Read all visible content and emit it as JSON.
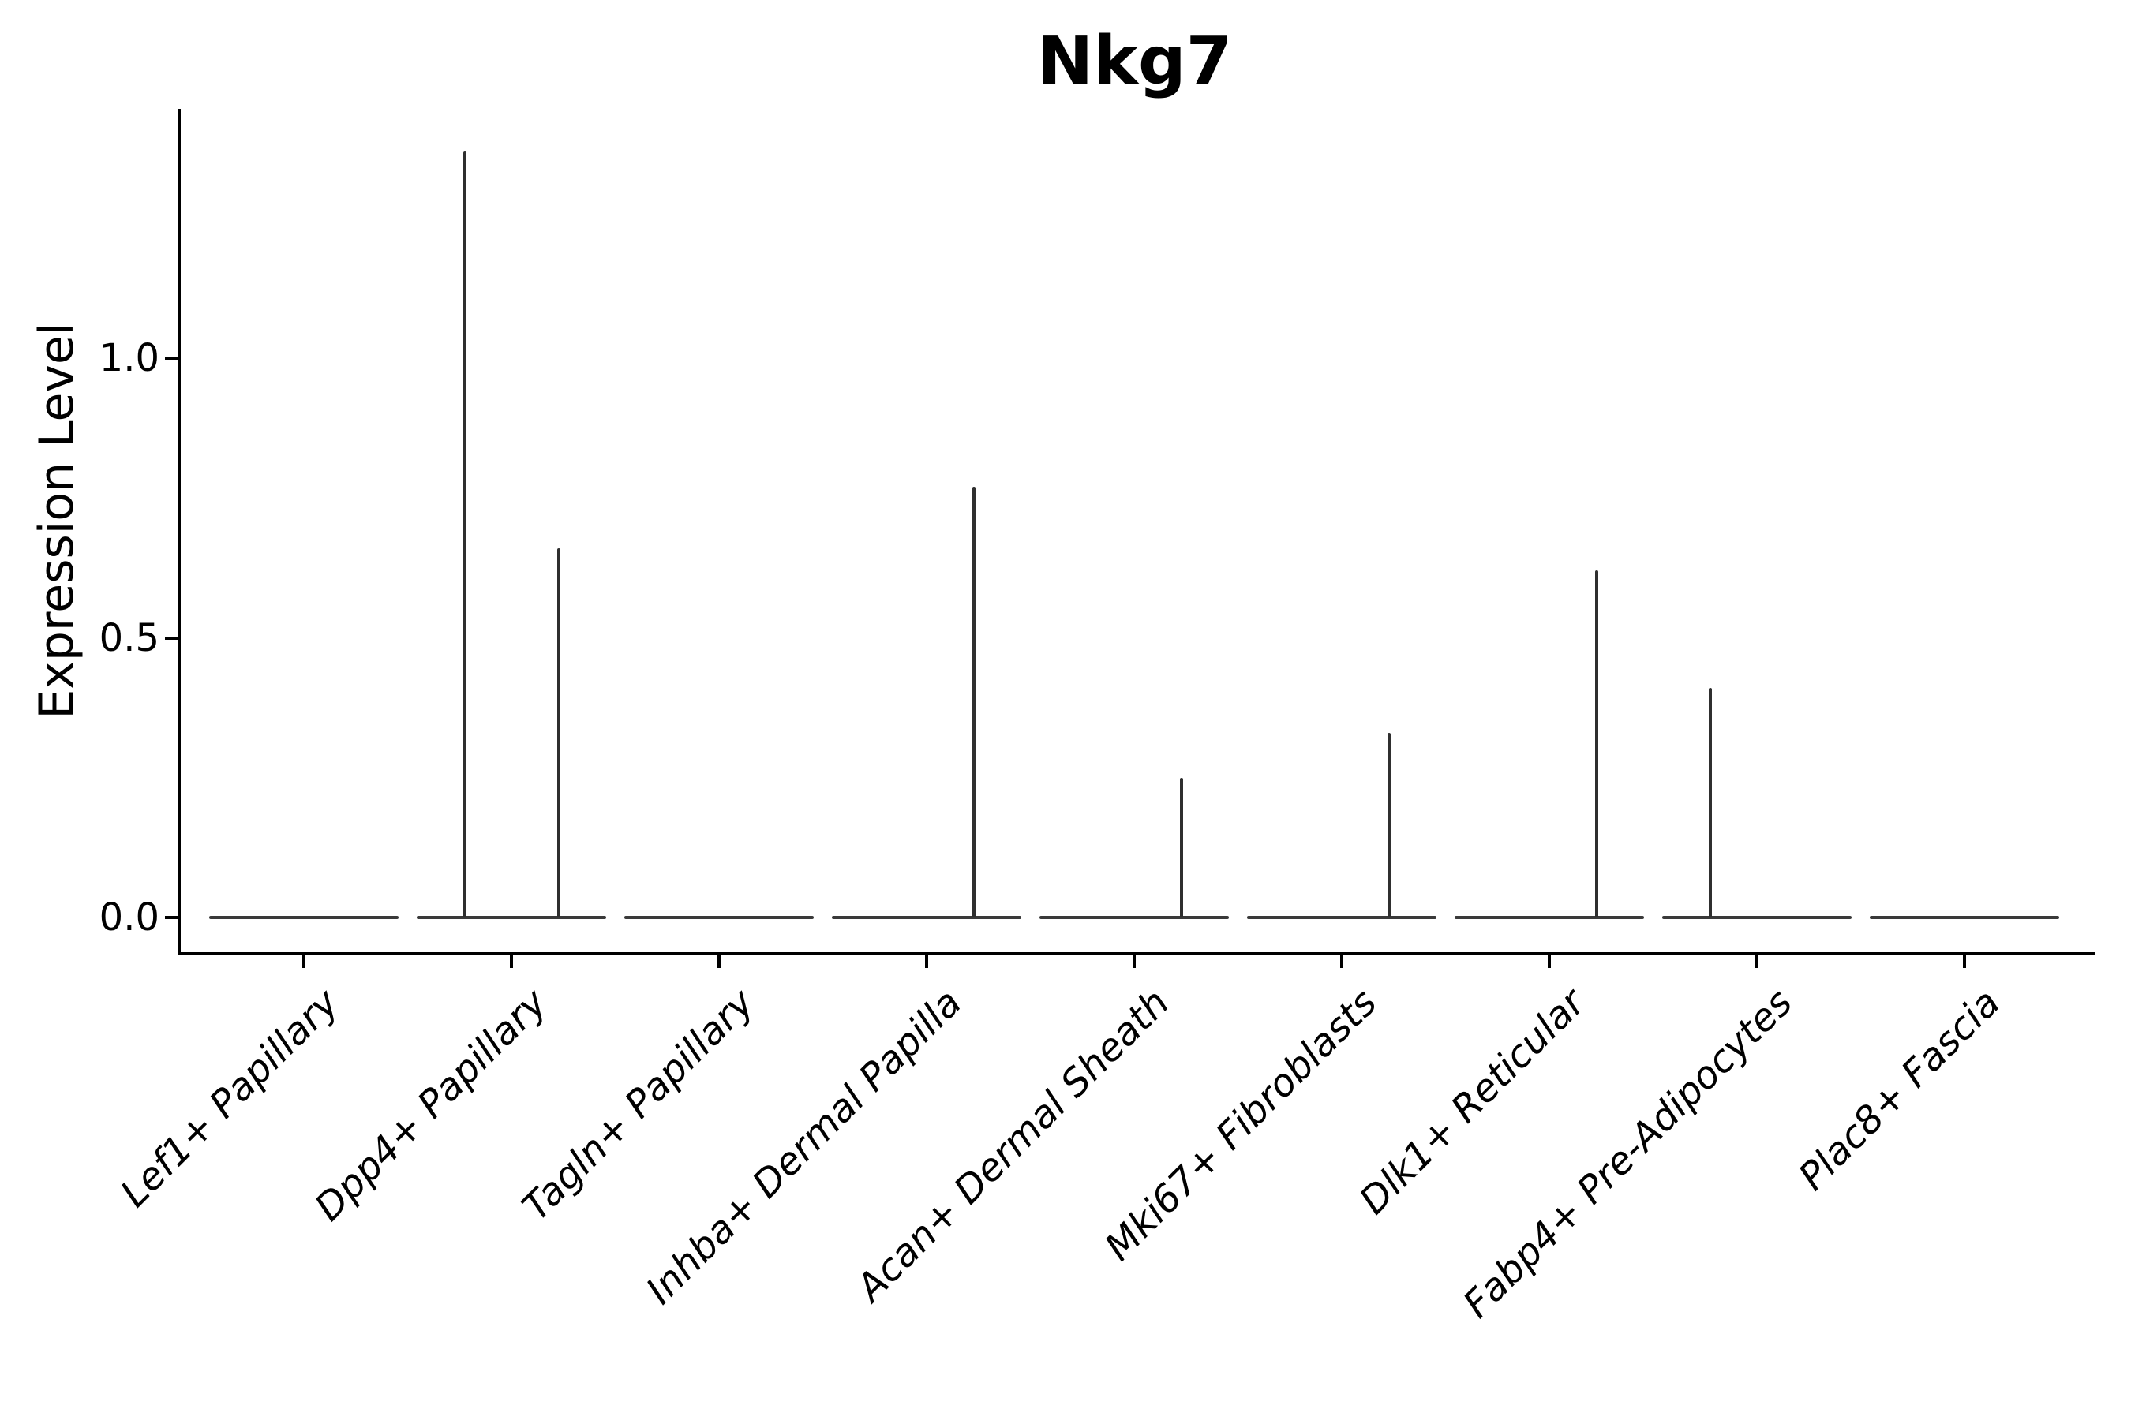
{
  "title": "Nkg7",
  "y_axis": {
    "label": "Expression Level",
    "tick_labels": [
      "0.0",
      "0.5",
      "1.0"
    ]
  },
  "chart_data": {
    "type": "violin",
    "title": "Nkg7",
    "xlabel": "",
    "ylabel": "Expression Level",
    "ylim": [
      -0.065,
      1.443
    ],
    "yticks": [
      0.0,
      0.5,
      1.0
    ],
    "grid": false,
    "legend": null,
    "description": "Violin plot of Nkg7 expression per fibroblast subtype; each violin is collapsed to a flat line at 0 with thin density spikes where few cells express the gene. Each category holds two half-width violins (left/right slots).",
    "categories": [
      {
        "label": "Lef1+ Papillary",
        "baseline": 0.0,
        "spikes": []
      },
      {
        "label": "Dpp4+ Papillary",
        "baseline": 0.0,
        "spikes": [
          {
            "slot": "left",
            "peak": 1.37
          },
          {
            "slot": "right",
            "peak": 0.66
          }
        ]
      },
      {
        "label": "Tagln+ Papillary",
        "baseline": 0.0,
        "spikes": []
      },
      {
        "label": "Inhba+ Dermal Papilla",
        "baseline": 0.0,
        "spikes": [
          {
            "slot": "right",
            "peak": 0.77
          }
        ]
      },
      {
        "label": "Acan+ Dermal Sheath",
        "baseline": 0.0,
        "spikes": [
          {
            "slot": "right",
            "peak": 0.25
          }
        ]
      },
      {
        "label": "Mki67+ Fibroblasts",
        "baseline": 0.0,
        "spikes": [
          {
            "slot": "right",
            "peak": 0.33
          }
        ]
      },
      {
        "label": "Dlk1+ Reticular",
        "baseline": 0.0,
        "spikes": [
          {
            "slot": "right",
            "peak": 0.62
          }
        ]
      },
      {
        "label": "Fabp4+ Pre-Adipocytes",
        "baseline": 0.0,
        "spikes": [
          {
            "slot": "left",
            "peak": 0.41
          }
        ]
      },
      {
        "label": "Plac8+ Fascia",
        "baseline": 0.0,
        "spikes": []
      }
    ],
    "colors": {
      "axis": "#000000",
      "violin_edge": "#2f2f2f",
      "text": "#000000",
      "background": "#ffffff"
    }
  }
}
